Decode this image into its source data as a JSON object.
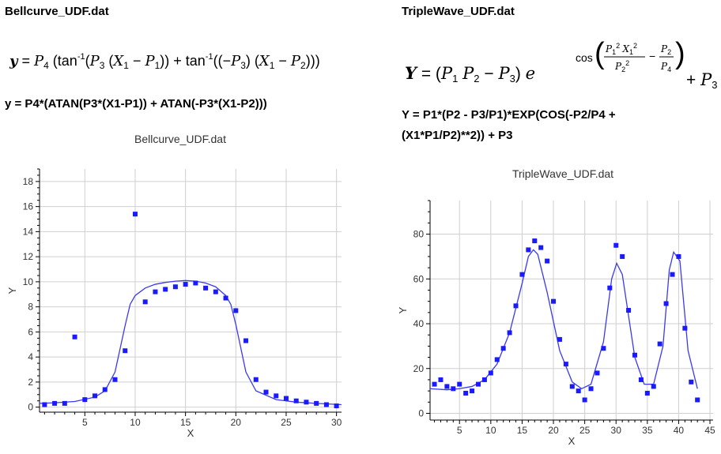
{
  "left": {
    "file_title": "Bellcurve_UDF.dat",
    "formula_text": "y = P4*(ATAN(P3*(X1-P1)) + ATAN(-P3*(X1-P2)))",
    "chart_title": "Bellcurve_UDF.dat"
  },
  "right": {
    "file_title": "TripleWave_UDF.dat",
    "formula_text_line1": "Y = P1*(P2 - P3/P1)*EXP(COS(-P2/P4 +",
    "formula_text_line2": "(X1*P1/P2)**2)) + P3",
    "chart_title": "TripleWave_UDF.dat"
  },
  "chart_data": [
    {
      "type": "scatter",
      "title": "Bellcurve_UDF.dat",
      "xlabel": "X",
      "ylabel": "Y",
      "xlim": [
        0.5,
        30.5
      ],
      "ylim": [
        -0.4,
        19
      ],
      "xticks": [
        5,
        10,
        15,
        20,
        25,
        30
      ],
      "yticks": [
        0,
        2,
        4,
        6,
        8,
        10,
        12,
        14,
        16,
        18
      ],
      "grid": true,
      "colors": {
        "points": "#1a1aff",
        "line": "#3a3af0"
      },
      "points": {
        "x": [
          1,
          2,
          3,
          4,
          5,
          6,
          7,
          8,
          9,
          10,
          11,
          12,
          13,
          14,
          15,
          16,
          17,
          18,
          19,
          20,
          21,
          22,
          23,
          24,
          25,
          26,
          27,
          28,
          29,
          30
        ],
        "y": [
          0.2,
          0.3,
          0.3,
          5.6,
          0.6,
          0.9,
          1.4,
          2.2,
          4.5,
          15.4,
          8.4,
          9.2,
          9.4,
          9.6,
          9.8,
          9.9,
          9.5,
          9.2,
          8.7,
          7.7,
          5.3,
          2.2,
          1.2,
          0.9,
          0.7,
          0.5,
          0.4,
          0.3,
          0.2,
          0.1
        ]
      },
      "fit_curve": {
        "x": [
          0.5,
          2,
          4,
          6,
          7,
          8,
          9,
          9.5,
          10,
          11,
          12,
          13,
          14,
          15,
          16,
          17,
          18,
          19,
          19.5,
          20,
          21,
          22,
          24,
          26,
          28,
          30.5
        ],
        "y": [
          0.3,
          0.35,
          0.45,
          0.8,
          1.3,
          2.8,
          6.5,
          8.2,
          8.9,
          9.5,
          9.8,
          9.95,
          10.05,
          10.1,
          10.05,
          9.9,
          9.6,
          8.9,
          8.2,
          6.6,
          2.8,
          1.3,
          0.6,
          0.4,
          0.3,
          0.2
        ]
      }
    },
    {
      "type": "scatter",
      "title": "TripleWave_UDF.dat",
      "xlabel": "X",
      "ylabel": "Y",
      "xlim": [
        0.3,
        45.5
      ],
      "ylim": [
        -3,
        95
      ],
      "xticks": [
        5,
        10,
        15,
        20,
        25,
        30,
        35,
        40,
        45
      ],
      "yticks": [
        0,
        20,
        40,
        60,
        80
      ],
      "grid": true,
      "colors": {
        "points": "#1a1aff",
        "line": "#3a3af0"
      },
      "points": {
        "x": [
          1,
          2,
          3,
          4,
          5,
          6,
          7,
          8,
          9,
          10,
          11,
          12,
          13,
          14,
          15,
          16,
          17,
          18,
          19,
          20,
          21,
          22,
          23,
          24,
          25,
          26,
          27,
          28,
          29,
          30,
          31,
          32,
          33,
          34,
          35,
          36,
          37,
          38,
          39,
          40,
          41,
          42,
          43
        ],
        "y": [
          13,
          15,
          12,
          11,
          13,
          9,
          10,
          13,
          15,
          18,
          24,
          29,
          36,
          48,
          62,
          73,
          77,
          74,
          68,
          50,
          33,
          22,
          12,
          10,
          6,
          11,
          18,
          29,
          56,
          75,
          70,
          46,
          26,
          15,
          9,
          12,
          31,
          49,
          62,
          70,
          38,
          14,
          6
        ]
      },
      "fit_curve": {
        "x": [
          0.3,
          3,
          5,
          7,
          9,
          11,
          13,
          15,
          16,
          16.8,
          17.5,
          19,
          21,
          23,
          24.5,
          26,
          28,
          29.3,
          30.1,
          31,
          33,
          34.5,
          36,
          37.5,
          38.5,
          39.2,
          40.2,
          41.5,
          43
        ],
        "y": [
          11,
          10.5,
          11,
          12,
          15,
          22,
          36,
          58,
          70,
          73,
          71,
          54,
          28,
          14,
          11,
          13,
          32,
          60,
          67,
          62,
          25,
          13,
          13,
          30,
          64,
          72,
          68,
          28,
          11
        ]
      }
    }
  ]
}
